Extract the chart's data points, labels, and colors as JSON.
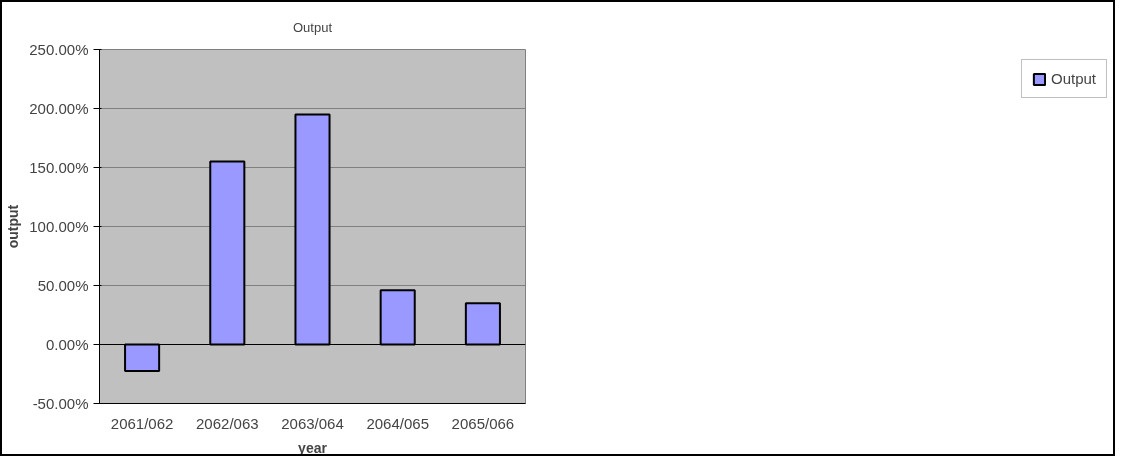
{
  "chart_data": {
    "type": "bar",
    "title": "Output",
    "xlabel": "year",
    "ylabel": "output",
    "categories": [
      "2061/062",
      "2062/063",
      "2063/064",
      "2064/065",
      "2065/066"
    ],
    "series": [
      {
        "name": "Output",
        "color": "#9999ff",
        "values": [
          -22.5,
          155,
          195,
          46,
          35
        ]
      }
    ],
    "ylim": [
      -50,
      250
    ],
    "yticks": [
      {
        "value": -50,
        "label": "-50.00%"
      },
      {
        "value": 0,
        "label": "0.00%"
      },
      {
        "value": 50,
        "label": "50.00%"
      },
      {
        "value": 100,
        "label": "100.00%"
      },
      {
        "value": 150,
        "label": "150.00%"
      },
      {
        "value": 200,
        "label": "200.00%"
      },
      {
        "value": 250,
        "label": "250.00%"
      }
    ],
    "grid": "y",
    "legend": "right"
  }
}
